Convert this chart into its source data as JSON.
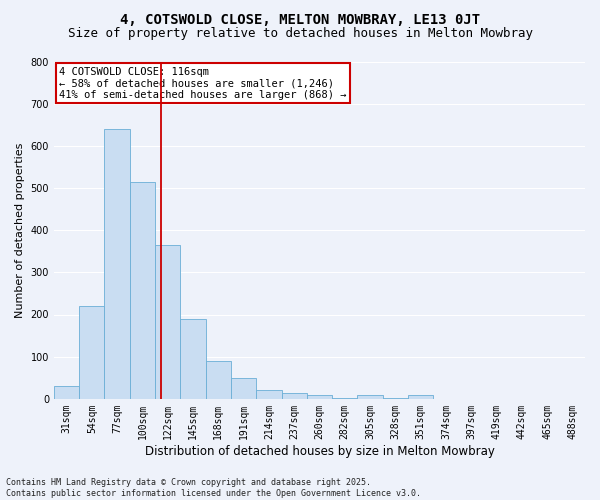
{
  "title": "4, COTSWOLD CLOSE, MELTON MOWBRAY, LE13 0JT",
  "subtitle": "Size of property relative to detached houses in Melton Mowbray",
  "xlabel": "Distribution of detached houses by size in Melton Mowbray",
  "ylabel": "Number of detached properties",
  "bin_labels": [
    "31sqm",
    "54sqm",
    "77sqm",
    "100sqm",
    "122sqm",
    "145sqm",
    "168sqm",
    "191sqm",
    "214sqm",
    "237sqm",
    "260sqm",
    "282sqm",
    "305sqm",
    "328sqm",
    "351sqm",
    "374sqm",
    "397sqm",
    "419sqm",
    "442sqm",
    "465sqm",
    "488sqm"
  ],
  "bar_values": [
    30,
    220,
    640,
    515,
    365,
    190,
    90,
    50,
    20,
    15,
    8,
    3,
    8,
    3,
    8,
    0,
    0,
    0,
    0,
    0,
    0
  ],
  "bar_color": "#c9ddf2",
  "bar_edge_color": "#6aaed6",
  "background_color": "#eef2fa",
  "grid_color": "#ffffff",
  "red_line_x": 3.73,
  "annotation_text": "4 COTSWOLD CLOSE: 116sqm\n← 58% of detached houses are smaller (1,246)\n41% of semi-detached houses are larger (868) →",
  "annotation_box_color": "#ffffff",
  "annotation_box_edge": "#cc0000",
  "ylim": [
    0,
    800
  ],
  "yticks": [
    0,
    100,
    200,
    300,
    400,
    500,
    600,
    700,
    800
  ],
  "footer": "Contains HM Land Registry data © Crown copyright and database right 2025.\nContains public sector information licensed under the Open Government Licence v3.0.",
  "title_fontsize": 10,
  "subtitle_fontsize": 9,
  "tick_fontsize": 7,
  "ylabel_fontsize": 8,
  "xlabel_fontsize": 8.5,
  "footer_fontsize": 6,
  "annot_fontsize": 7.5
}
